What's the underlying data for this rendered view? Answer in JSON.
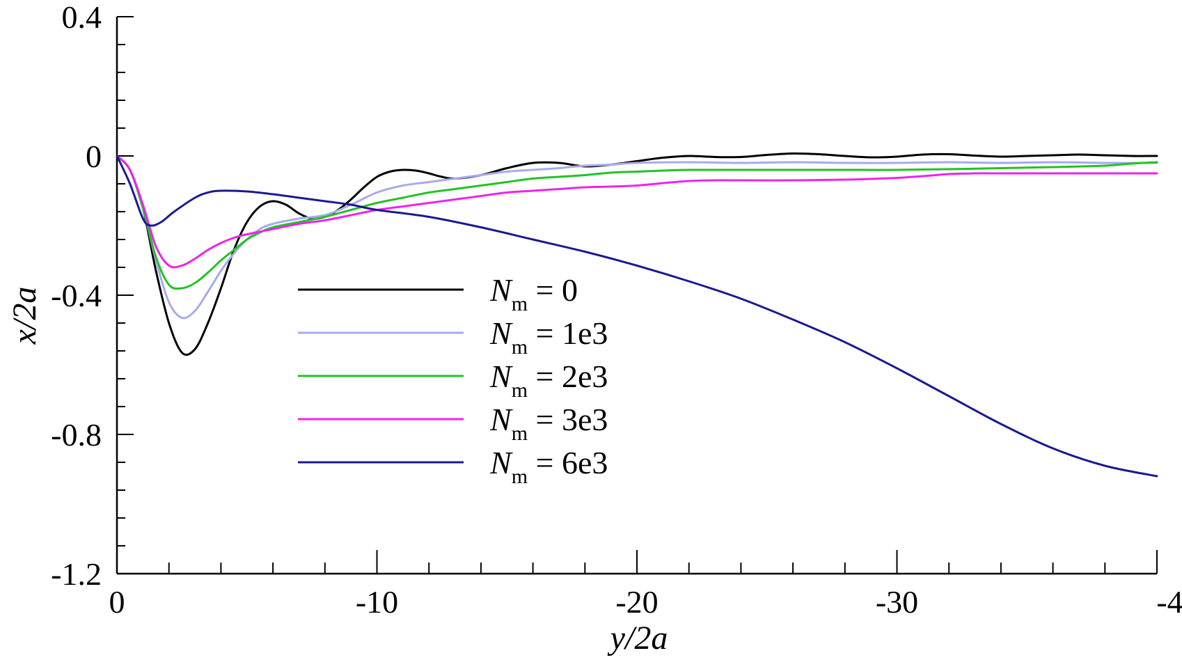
{
  "chart_data": {
    "type": "line",
    "xlabel": "y/2a",
    "ylabel": "x/2a",
    "xlim": [
      0,
      -40
    ],
    "ylim": [
      -1.2,
      0.4
    ],
    "x_major_ticks": [
      0,
      -10,
      -20,
      -30,
      -40
    ],
    "x_minor_step": 2,
    "y_major_ticks": [
      0.4,
      0,
      -0.4,
      -0.8,
      -1.2
    ],
    "y_minor_step": 0.08,
    "x_tick_labels": [
      "0",
      "-10",
      "-20",
      "-30",
      "-40"
    ],
    "y_tick_labels": [
      "0.4",
      "0",
      "-0.4",
      "-0.8",
      "-1.2"
    ],
    "grid": false,
    "legend_position": "center",
    "legend_symbol": "N",
    "legend_subscript": "m",
    "series": [
      {
        "name": "= 0",
        "color": "#000000",
        "points": [
          [
            0,
            0
          ],
          [
            -0.5,
            -0.04
          ],
          [
            -1,
            -0.15
          ],
          [
            -1.5,
            -0.33
          ],
          [
            -2,
            -0.48
          ],
          [
            -2.5,
            -0.565
          ],
          [
            -3,
            -0.555
          ],
          [
            -3.5,
            -0.48
          ],
          [
            -4,
            -0.38
          ],
          [
            -4.5,
            -0.27
          ],
          [
            -5,
            -0.19
          ],
          [
            -5.5,
            -0.145
          ],
          [
            -6,
            -0.13
          ],
          [
            -6.5,
            -0.14
          ],
          [
            -7,
            -0.165
          ],
          [
            -7.5,
            -0.18
          ],
          [
            -8,
            -0.175
          ],
          [
            -8.5,
            -0.155
          ],
          [
            -9,
            -0.125
          ],
          [
            -9.5,
            -0.09
          ],
          [
            -10,
            -0.06
          ],
          [
            -10.5,
            -0.045
          ],
          [
            -11,
            -0.04
          ],
          [
            -11.5,
            -0.042
          ],
          [
            -12,
            -0.05
          ],
          [
            -12.5,
            -0.06
          ],
          [
            -13,
            -0.065
          ],
          [
            -14,
            -0.055
          ],
          [
            -15,
            -0.035
          ],
          [
            -16,
            -0.02
          ],
          [
            -17,
            -0.02
          ],
          [
            -18,
            -0.03
          ],
          [
            -19,
            -0.025
          ],
          [
            -20,
            -0.015
          ],
          [
            -21,
            -0.005
          ],
          [
            -22,
            0
          ],
          [
            -23,
            -0.003
          ],
          [
            -24,
            -0.003
          ],
          [
            -25,
            0.003
          ],
          [
            -26,
            0.007
          ],
          [
            -27,
            0.005
          ],
          [
            -28,
            0
          ],
          [
            -29,
            -0.004
          ],
          [
            -30,
            -0.002
          ],
          [
            -31,
            0.004
          ],
          [
            -32,
            0.005
          ],
          [
            -33,
            0.001
          ],
          [
            -34,
            -0.002
          ],
          [
            -35,
            0
          ],
          [
            -36,
            0.002
          ],
          [
            -37,
            0.004
          ],
          [
            -38,
            0.002
          ],
          [
            -39,
            0
          ],
          [
            -40,
            0
          ]
        ]
      },
      {
        "name": "= 1e3",
        "color": "#a7aaee",
        "points": [
          [
            0,
            0
          ],
          [
            -0.5,
            -0.04
          ],
          [
            -1,
            -0.15
          ],
          [
            -1.5,
            -0.3
          ],
          [
            -2,
            -0.42
          ],
          [
            -2.5,
            -0.465
          ],
          [
            -3,
            -0.445
          ],
          [
            -3.5,
            -0.39
          ],
          [
            -4,
            -0.33
          ],
          [
            -4.5,
            -0.28
          ],
          [
            -5,
            -0.24
          ],
          [
            -5.5,
            -0.21
          ],
          [
            -6,
            -0.195
          ],
          [
            -7,
            -0.18
          ],
          [
            -8,
            -0.17
          ],
          [
            -9,
            -0.14
          ],
          [
            -10,
            -0.105
          ],
          [
            -11,
            -0.085
          ],
          [
            -12,
            -0.075
          ],
          [
            -13,
            -0.065
          ],
          [
            -14,
            -0.055
          ],
          [
            -15,
            -0.045
          ],
          [
            -16,
            -0.04
          ],
          [
            -17,
            -0.035
          ],
          [
            -18,
            -0.028
          ],
          [
            -19,
            -0.025
          ],
          [
            -20,
            -0.02
          ],
          [
            -22,
            -0.018
          ],
          [
            -24,
            -0.02
          ],
          [
            -26,
            -0.018
          ],
          [
            -28,
            -0.02
          ],
          [
            -30,
            -0.02
          ],
          [
            -32,
            -0.018
          ],
          [
            -34,
            -0.02
          ],
          [
            -36,
            -0.018
          ],
          [
            -38,
            -0.02
          ],
          [
            -40,
            -0.02
          ]
        ]
      },
      {
        "name": "= 2e3",
        "color": "#22c322",
        "points": [
          [
            0,
            0
          ],
          [
            -0.5,
            -0.04
          ],
          [
            -1,
            -0.15
          ],
          [
            -1.5,
            -0.29
          ],
          [
            -2,
            -0.37
          ],
          [
            -2.5,
            -0.38
          ],
          [
            -3,
            -0.365
          ],
          [
            -3.5,
            -0.335
          ],
          [
            -4,
            -0.3
          ],
          [
            -4.5,
            -0.27
          ],
          [
            -5,
            -0.24
          ],
          [
            -5.5,
            -0.22
          ],
          [
            -6,
            -0.205
          ],
          [
            -7,
            -0.19
          ],
          [
            -8,
            -0.175
          ],
          [
            -9,
            -0.155
          ],
          [
            -10,
            -0.135
          ],
          [
            -11,
            -0.12
          ],
          [
            -12,
            -0.105
          ],
          [
            -13,
            -0.095
          ],
          [
            -14,
            -0.085
          ],
          [
            -15,
            -0.075
          ],
          [
            -16,
            -0.065
          ],
          [
            -17,
            -0.06
          ],
          [
            -18,
            -0.055
          ],
          [
            -19,
            -0.048
          ],
          [
            -20,
            -0.045
          ],
          [
            -21,
            -0.042
          ],
          [
            -22,
            -0.04
          ],
          [
            -24,
            -0.04
          ],
          [
            -26,
            -0.04
          ],
          [
            -28,
            -0.04
          ],
          [
            -30,
            -0.04
          ],
          [
            -32,
            -0.038
          ],
          [
            -34,
            -0.035
          ],
          [
            -36,
            -0.032
          ],
          [
            -38,
            -0.028
          ],
          [
            -39,
            -0.022
          ],
          [
            -40,
            -0.018
          ]
        ]
      },
      {
        "name": "= 3e3",
        "color": "#ee22ee",
        "points": [
          [
            0,
            0
          ],
          [
            -0.5,
            -0.04
          ],
          [
            -1,
            -0.14
          ],
          [
            -1.5,
            -0.26
          ],
          [
            -2,
            -0.315
          ],
          [
            -2.5,
            -0.315
          ],
          [
            -3,
            -0.295
          ],
          [
            -3.5,
            -0.27
          ],
          [
            -4,
            -0.25
          ],
          [
            -4.5,
            -0.235
          ],
          [
            -5,
            -0.225
          ],
          [
            -6,
            -0.21
          ],
          [
            -7,
            -0.195
          ],
          [
            -8,
            -0.185
          ],
          [
            -9,
            -0.17
          ],
          [
            -10,
            -0.155
          ],
          [
            -11,
            -0.145
          ],
          [
            -12,
            -0.135
          ],
          [
            -13,
            -0.125
          ],
          [
            -14,
            -0.115
          ],
          [
            -15,
            -0.105
          ],
          [
            -16,
            -0.1
          ],
          [
            -17,
            -0.095
          ],
          [
            -18,
            -0.09
          ],
          [
            -19,
            -0.088
          ],
          [
            -20,
            -0.085
          ],
          [
            -21,
            -0.078
          ],
          [
            -22,
            -0.072
          ],
          [
            -23,
            -0.07
          ],
          [
            -24,
            -0.07
          ],
          [
            -26,
            -0.07
          ],
          [
            -28,
            -0.068
          ],
          [
            -29,
            -0.066
          ],
          [
            -30,
            -0.063
          ],
          [
            -31,
            -0.058
          ],
          [
            -32,
            -0.052
          ],
          [
            -33,
            -0.05
          ],
          [
            -34,
            -0.05
          ],
          [
            -36,
            -0.05
          ],
          [
            -38,
            -0.05
          ],
          [
            -40,
            -0.05
          ]
        ]
      },
      {
        "name": "= 6e3",
        "color": "#1a1a8f",
        "points": [
          [
            0,
            0
          ],
          [
            -0.5,
            -0.08
          ],
          [
            -1,
            -0.18
          ],
          [
            -1.3,
            -0.2
          ],
          [
            -1.7,
            -0.19
          ],
          [
            -2.2,
            -0.16
          ],
          [
            -3,
            -0.12
          ],
          [
            -3.5,
            -0.105
          ],
          [
            -4,
            -0.1
          ],
          [
            -5,
            -0.102
          ],
          [
            -6,
            -0.11
          ],
          [
            -7,
            -0.12
          ],
          [
            -8,
            -0.13
          ],
          [
            -9,
            -0.14
          ],
          [
            -10,
            -0.155
          ],
          [
            -12,
            -0.175
          ],
          [
            -14,
            -0.205
          ],
          [
            -16,
            -0.24
          ],
          [
            -18,
            -0.275
          ],
          [
            -20,
            -0.315
          ],
          [
            -22,
            -0.36
          ],
          [
            -24,
            -0.41
          ],
          [
            -26,
            -0.47
          ],
          [
            -28,
            -0.535
          ],
          [
            -30,
            -0.61
          ],
          [
            -32,
            -0.69
          ],
          [
            -34,
            -0.77
          ],
          [
            -36,
            -0.84
          ],
          [
            -38,
            -0.89
          ],
          [
            -40,
            -0.92
          ]
        ]
      }
    ]
  }
}
